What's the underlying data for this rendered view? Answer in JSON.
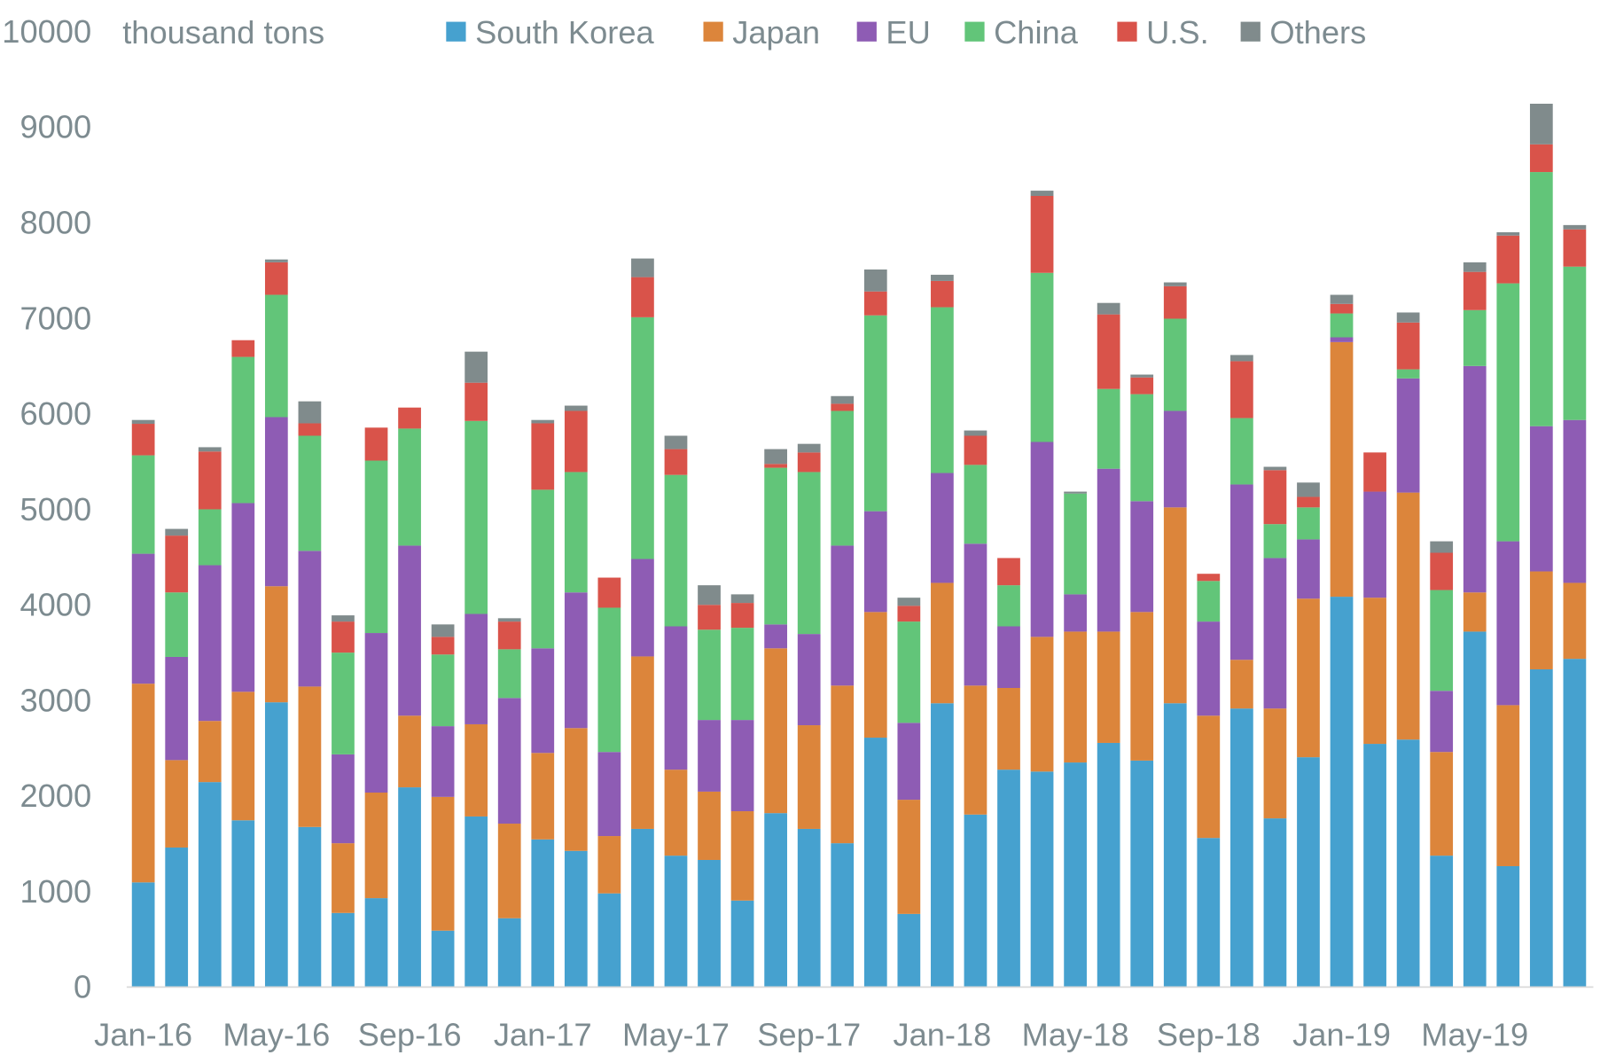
{
  "chart_data": {
    "type": "bar",
    "stacked": true,
    "title": "",
    "ylabel": "thousand tons",
    "xlabel": "",
    "ylim": [
      0,
      10000
    ],
    "yticks": [
      0,
      1000,
      2000,
      3000,
      4000,
      5000,
      6000,
      7000,
      8000,
      9000,
      10000
    ],
    "grid": false,
    "legend_position": "top",
    "categories": [
      "Jan-16",
      "Feb-16",
      "Mar-16",
      "Apr-16",
      "May-16",
      "Jun-16",
      "Jul-16",
      "Aug-16",
      "Sep-16",
      "Oct-16",
      "Nov-16",
      "Dec-16",
      "Jan-17",
      "Feb-17",
      "Mar-17",
      "Apr-17",
      "May-17",
      "Jun-17",
      "Jul-17",
      "Aug-17",
      "Sep-17",
      "Oct-17",
      "Nov-17",
      "Dec-17",
      "Jan-18",
      "Feb-18",
      "Mar-18",
      "Apr-18",
      "May-18",
      "Jun-18",
      "Jul-18",
      "Aug-18",
      "Sep-18",
      "Oct-18",
      "Nov-18",
      "Dec-18",
      "Jan-19",
      "Feb-19",
      "Mar-19",
      "Apr-19",
      "May-19",
      "Jun-19",
      "Jul-19",
      "Aug-19"
    ],
    "xtick_labels": [
      "Jan-16",
      "May-16",
      "Sep-16",
      "Jan-17",
      "May-17",
      "Sep-17",
      "Jan-18",
      "May-18",
      "Sep-18",
      "Jan-19",
      "May-19"
    ],
    "series": [
      {
        "name": "South Korea",
        "color": "#46a1cf",
        "values": [
          1090,
          1455,
          2140,
          1740,
          2975,
          1670,
          770,
          925,
          2085,
          585,
          1780,
          715,
          1540,
          1420,
          975,
          1650,
          1370,
          1325,
          900,
          1815,
          1650,
          1500,
          2605,
          760,
          2965,
          1800,
          2270,
          2250,
          2345,
          2550,
          2365,
          2965,
          1555,
          2910,
          1760,
          2400,
          4080,
          2540,
          2585,
          1370,
          3715,
          1260,
          3320,
          3430
        ]
      },
      {
        "name": "Japan",
        "color": "#dc853b",
        "values": [
          2080,
          915,
          640,
          1345,
          1215,
          1470,
          730,
          1105,
          750,
          1400,
          965,
          990,
          905,
          1285,
          600,
          1805,
          900,
          715,
          935,
          1725,
          1085,
          1650,
          1315,
          1195,
          1260,
          1350,
          855,
          1410,
          1370,
          1165,
          1555,
          2050,
          1280,
          510,
          1150,
          1660,
          2665,
          1530,
          2585,
          1085,
          410,
          1685,
          1025,
          795
        ]
      },
      {
        "name": "EU",
        "color": "#8e5cb4",
        "values": [
          1360,
          1080,
          1630,
          1975,
          1770,
          1420,
          930,
          1670,
          1780,
          740,
          1155,
          1315,
          1095,
          1420,
          880,
          1020,
          1500,
          750,
          955,
          250,
          955,
          1465,
          1055,
          805,
          1150,
          1485,
          645,
          2040,
          390,
          1705,
          1160,
          1010,
          985,
          1835,
          1575,
          620,
          50,
          1110,
          1195,
          640,
          2370,
          1715,
          1520,
          1705
        ]
      },
      {
        "name": "China",
        "color": "#62c579",
        "values": [
          1030,
          675,
          585,
          1530,
          1280,
          1205,
          1065,
          1805,
          1225,
          750,
          2020,
          510,
          1660,
          1260,
          1510,
          2530,
          1585,
          945,
          965,
          1640,
          1695,
          1410,
          2050,
          1060,
          1735,
          825,
          430,
          1770,
          1055,
          835,
          1120,
          965,
          425,
          695,
          355,
          335,
          250,
          0,
          95,
          1055,
          585,
          2700,
          2660,
          1605
        ]
      },
      {
        "name": "U.S.",
        "color": "#d9534a",
        "values": [
          330,
          595,
          605,
          175,
          340,
          130,
          325,
          345,
          220,
          185,
          400,
          290,
          695,
          640,
          315,
          420,
          270,
          260,
          260,
          40,
          205,
          75,
          250,
          165,
          275,
          305,
          285,
          805,
          0,
          780,
          175,
          340,
          75,
          595,
          565,
          110,
          100,
          410,
          490,
          390,
          400,
          500,
          290,
          390
        ]
      },
      {
        "name": "Others",
        "color": "#808b8c",
        "values": [
          40,
          70,
          45,
          0,
          30,
          230,
          65,
          0,
          0,
          130,
          325,
          35,
          35,
          55,
          0,
          195,
          140,
          205,
          90,
          155,
          90,
          80,
          230,
          85,
          65,
          55,
          0,
          55,
          20,
          120,
          30,
          40,
          0,
          65,
          35,
          150,
          95,
          0,
          105,
          120,
          100,
          35,
          425,
          45
        ]
      }
    ]
  }
}
